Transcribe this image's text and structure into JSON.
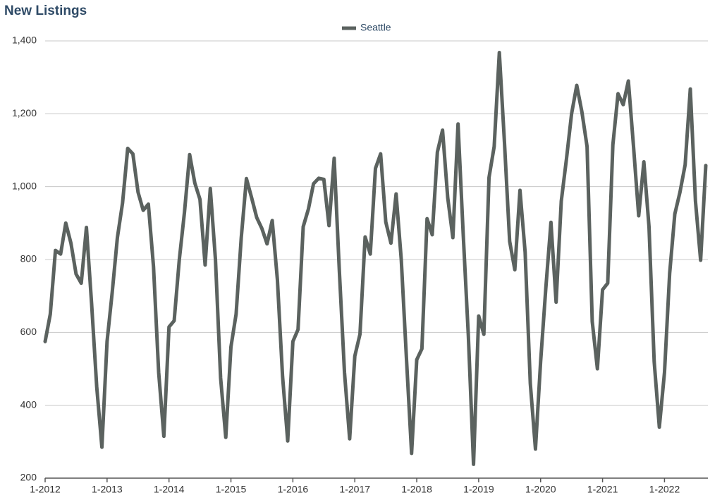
{
  "chart_data": {
    "type": "line",
    "title": "New Listings",
    "categories": [
      "1-2012",
      null,
      null,
      null,
      null,
      null,
      null,
      null,
      null,
      null,
      null,
      null,
      "1-2013",
      null,
      null,
      null,
      null,
      null,
      null,
      null,
      null,
      null,
      null,
      null,
      "1-2014",
      null,
      null,
      null,
      null,
      null,
      null,
      null,
      null,
      null,
      null,
      null,
      "1-2015",
      null,
      null,
      null,
      null,
      null,
      null,
      null,
      null,
      null,
      null,
      null,
      "1-2016",
      null,
      null,
      null,
      null,
      null,
      null,
      null,
      null,
      null,
      null,
      null,
      "1-2017",
      null,
      null,
      null,
      null,
      null,
      null,
      null,
      null,
      null,
      null,
      null,
      "1-2018",
      null,
      null,
      null,
      null,
      null,
      null,
      null,
      null,
      null,
      null,
      null,
      "1-2019",
      null,
      null,
      null,
      null,
      null,
      null,
      null,
      null,
      null,
      null,
      null,
      "1-2020",
      null,
      null,
      null,
      null,
      null,
      null,
      null,
      null,
      null,
      null,
      null,
      "1-2021",
      null,
      null,
      null,
      null,
      null,
      null,
      null,
      null,
      null,
      null,
      null,
      "1-2022",
      null,
      null,
      null,
      null,
      null,
      null,
      null,
      null
    ],
    "series": [
      {
        "name": "Seattle",
        "color": "#5b625f",
        "values": [
          575,
          650,
          825,
          815,
          900,
          845,
          760,
          735,
          888,
          680,
          450,
          285,
          575,
          710,
          860,
          955,
          1105,
          1090,
          985,
          935,
          952,
          780,
          490,
          315,
          615,
          632,
          800,
          930,
          1088,
          1010,
          965,
          785,
          995,
          800,
          475,
          312,
          560,
          650,
          860,
          1022,
          970,
          915,
          885,
          843,
          907,
          745,
          480,
          302,
          575,
          608,
          890,
          938,
          1008,
          1023,
          1020,
          893,
          1078,
          770,
          490,
          308,
          535,
          595,
          862,
          815,
          1050,
          1090,
          903,
          845,
          980,
          800,
          530,
          268,
          525,
          555,
          912,
          868,
          1095,
          1155,
          970,
          860,
          1172,
          870,
          590,
          238,
          645,
          595,
          1025,
          1110,
          1368,
          1120,
          850,
          772,
          990,
          820,
          460,
          280,
          520,
          720,
          902,
          683,
          960,
          1075,
          1200,
          1278,
          1205,
          1110,
          630,
          500,
          717,
          735,
          1115,
          1255,
          1225,
          1290,
          1110,
          920,
          1068,
          890,
          520,
          340,
          490,
          762,
          925,
          985,
          1060,
          1268,
          960,
          798,
          1058
        ]
      }
    ],
    "ylim": [
      200,
      1400
    ],
    "yticks": [
      200,
      400,
      600,
      800,
      {
        "value": 1000,
        "label": "1,000"
      },
      {
        "value": 1200,
        "label": "1,200"
      },
      {
        "value": 1400,
        "label": "1,400"
      }
    ],
    "grid": true,
    "legend": "top"
  }
}
